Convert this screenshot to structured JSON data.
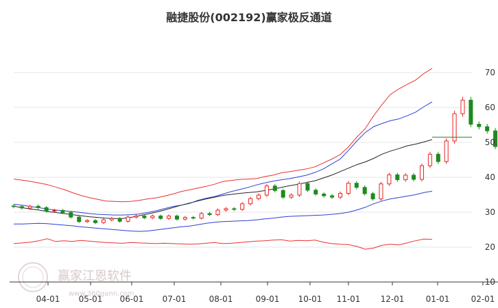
{
  "chart_data": {
    "type": "candlestick",
    "title": "融捷股份(002192)赢家极反通道",
    "xlabel": "",
    "ylabel": "",
    "ylim": [
      10,
      70
    ],
    "y_ticks": [
      10,
      20,
      30,
      40,
      50,
      60,
      70
    ],
    "x_ticks": [
      "04-01",
      "05-01",
      "06-01",
      "07-01",
      "08-01",
      "09-01",
      "10-01",
      "11-01",
      "12-01",
      "01-01",
      "02-01"
    ],
    "grid": true,
    "last_price": 51.5,
    "colors": {
      "up": "#e8231f",
      "down": "#1e8a1e",
      "outer_band": "#e83030",
      "inner_band": "#2a3fd6",
      "mid_line": "#222222",
      "price_line": "#1e8a1e",
      "grid": "#e6e6e6"
    },
    "series": [
      {
        "role": "outer-upper",
        "values": [
          39.5,
          39.2,
          38.8,
          38.4,
          37.9,
          37.2,
          36.5,
          35.6,
          34.8,
          34.2,
          33.7,
          33.2,
          33.1,
          33.0,
          33.1,
          33.4,
          33.8,
          34.1,
          34.6,
          35.2,
          35.9,
          36.4,
          36.9,
          37.4,
          38.0,
          38.8,
          39.1,
          39.4,
          39.5,
          39.6,
          40.2,
          40.6,
          41.3,
          41.6,
          42.0,
          42.4,
          43.0,
          44.1,
          45.2,
          46.5,
          48.7,
          51.5,
          53.9,
          57.6,
          60.8,
          63.7,
          65.3,
          66.6,
          67.8,
          69.7,
          71.2
        ]
      },
      {
        "role": "inner-upper",
        "values": [
          32.3,
          32.0,
          31.6,
          31.3,
          30.9,
          30.6,
          30.4,
          30.2,
          29.9,
          29.6,
          29.4,
          29.3,
          29.2,
          29.2,
          29.3,
          29.5,
          29.9,
          30.4,
          31.0,
          31.6,
          32.0,
          32.5,
          33.4,
          34.0,
          34.5,
          35.2,
          35.9,
          36.5,
          37.1,
          37.8,
          38.4,
          38.9,
          39.3,
          39.6,
          40.1,
          40.6,
          41.4,
          42.4,
          43.8,
          45.2,
          47.7,
          50.4,
          52.8,
          54.5,
          55.4,
          56.2,
          56.7,
          57.6,
          58.6,
          60.2,
          61.6
        ]
      },
      {
        "role": "middle",
        "values": [
          31.7,
          31.3,
          30.9,
          30.6,
          30.2,
          29.9,
          29.6,
          29.3,
          29.0,
          28.7,
          28.5,
          28.3,
          28.2,
          28.2,
          28.5,
          29.0,
          29.5,
          30.0,
          30.6,
          31.3,
          32.0,
          32.6,
          33.2,
          33.8,
          34.3,
          34.8,
          35.1,
          35.4,
          35.6,
          35.8,
          36.2,
          36.6,
          37.1,
          37.6,
          38.0,
          38.5,
          39.0,
          39.8,
          40.6,
          41.6,
          42.6,
          43.6,
          44.4,
          45.4,
          46.6,
          47.5,
          48.2,
          49.0,
          49.5,
          50.1,
          50.8
        ]
      },
      {
        "role": "inner-lower",
        "values": [
          26.6,
          26.6,
          26.7,
          26.8,
          26.7,
          26.5,
          26.3,
          26.1,
          25.8,
          25.6,
          25.4,
          25.2,
          25.0,
          24.8,
          24.6,
          24.5,
          24.6,
          24.9,
          25.2,
          25.5,
          25.8,
          26.0,
          26.4,
          26.8,
          27.1,
          27.3,
          27.4,
          27.5,
          27.6,
          27.8,
          28.1,
          28.3,
          28.6,
          28.8,
          28.9,
          29.0,
          29.1,
          29.2,
          29.4,
          29.6,
          30.0,
          30.6,
          31.4,
          32.4,
          33.2,
          33.8,
          34.2,
          34.6,
          35.0,
          35.6,
          36.0
        ]
      },
      {
        "role": "outer-lower",
        "values": [
          21.0,
          21.2,
          21.4,
          21.8,
          22.4,
          21.6,
          21.8,
          21.6,
          21.9,
          21.7,
          21.5,
          21.3,
          21.2,
          21.1,
          21.3,
          21.2,
          21.1,
          21.0,
          21.1,
          21.0,
          20.9,
          20.8,
          20.9,
          21.1,
          21.3,
          21.0,
          21.1,
          21.3,
          21.5,
          21.7,
          21.8,
          22.0,
          22.1,
          21.7,
          21.9,
          21.8,
          22.0,
          21.4,
          21.0,
          20.8,
          20.7,
          20.2,
          19.4,
          19.7,
          20.5,
          20.8,
          20.6,
          21.2,
          21.8,
          22.3,
          22.2
        ]
      }
    ],
    "candles": [
      {
        "o": 31.8,
        "c": 31.6
      },
      {
        "o": 31.6,
        "c": 31.2
      },
      {
        "o": 31.2,
        "c": 31.7
      },
      {
        "o": 31.7,
        "c": 31.3
      },
      {
        "o": 31.3,
        "c": 30.3
      },
      {
        "o": 30.3,
        "c": 30.5
      },
      {
        "o": 30.5,
        "c": 29.9
      },
      {
        "o": 29.9,
        "c": 28.6
      },
      {
        "o": 28.6,
        "c": 27.3
      },
      {
        "o": 27.3,
        "c": 27.6
      },
      {
        "o": 27.6,
        "c": 27.0
      },
      {
        "o": 27.0,
        "c": 27.8
      },
      {
        "o": 27.8,
        "c": 28.2
      },
      {
        "o": 28.2,
        "c": 27.4
      },
      {
        "o": 27.4,
        "c": 28.6
      },
      {
        "o": 28.6,
        "c": 28.9
      },
      {
        "o": 28.9,
        "c": 28.4
      },
      {
        "o": 28.4,
        "c": 28.9
      },
      {
        "o": 28.9,
        "c": 28.2
      },
      {
        "o": 28.2,
        "c": 28.9
      },
      {
        "o": 28.9,
        "c": 28.0
      },
      {
        "o": 28.0,
        "c": 28.5
      },
      {
        "o": 28.5,
        "c": 28.3
      },
      {
        "o": 28.3,
        "c": 29.6
      },
      {
        "o": 29.6,
        "c": 29.3
      },
      {
        "o": 29.3,
        "c": 30.6
      },
      {
        "o": 30.6,
        "c": 31.0
      },
      {
        "o": 31.0,
        "c": 30.8
      },
      {
        "o": 30.8,
        "c": 32.4
      },
      {
        "o": 32.4,
        "c": 33.9
      },
      {
        "o": 33.9,
        "c": 34.9
      },
      {
        "o": 34.9,
        "c": 37.5
      },
      {
        "o": 37.5,
        "c": 36.2
      },
      {
        "o": 36.2,
        "c": 34.3
      },
      {
        "o": 34.3,
        "c": 34.9
      },
      {
        "o": 34.9,
        "c": 38.2
      },
      {
        "o": 38.2,
        "c": 36.3
      },
      {
        "o": 36.3,
        "c": 35.2
      },
      {
        "o": 35.2,
        "c": 34.7
      },
      {
        "o": 34.7,
        "c": 34.3
      },
      {
        "o": 34.3,
        "c": 35.4
      },
      {
        "o": 35.4,
        "c": 38.3
      },
      {
        "o": 38.3,
        "c": 37.1
      },
      {
        "o": 37.1,
        "c": 35.3
      },
      {
        "o": 35.3,
        "c": 33.8
      },
      {
        "o": 33.8,
        "c": 38.1
      },
      {
        "o": 38.1,
        "c": 40.7
      },
      {
        "o": 40.7,
        "c": 39.3
      },
      {
        "o": 39.3,
        "c": 40.6
      },
      {
        "o": 40.6,
        "c": 39.4
      },
      {
        "o": 39.4,
        "c": 43.3
      },
      {
        "o": 43.3,
        "c": 46.6
      },
      {
        "o": 46.6,
        "c": 44.5
      },
      {
        "o": 44.5,
        "c": 50.4
      },
      {
        "o": 50.4,
        "c": 58.2
      },
      {
        "o": 58.2,
        "c": 62.1
      },
      {
        "o": 62.1,
        "c": 55.2
      },
      {
        "o": 55.2,
        "c": 54.5
      },
      {
        "o": 54.5,
        "c": 53.3
      },
      {
        "o": 53.3,
        "c": 48.8
      },
      {
        "o": 48.8,
        "c": 49.6
      },
      {
        "o": 49.6,
        "c": 47.5
      },
      {
        "o": 47.5,
        "c": 50.4
      },
      {
        "o": 50.4,
        "c": 48.3
      },
      {
        "o": 48.3,
        "c": 50.9
      },
      {
        "o": 50.9,
        "c": 54.1
      },
      {
        "o": 54.1,
        "c": 51.5
      }
    ]
  }
}
